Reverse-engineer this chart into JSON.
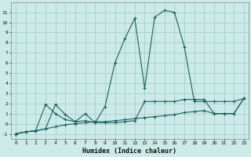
{
  "xlabel": "Humidex (Indice chaleur)",
  "background_color": "#cceae7",
  "grid_color": "#aacfcc",
  "line_color": "#1a6060",
  "x_values": [
    0,
    1,
    2,
    3,
    4,
    5,
    6,
    7,
    8,
    9,
    10,
    11,
    12,
    13,
    14,
    15,
    16,
    17,
    18,
    19,
    20,
    21,
    22,
    23
  ],
  "series1": [
    -1.0,
    -0.8,
    -0.7,
    -0.5,
    1.9,
    0.9,
    0.2,
    1.0,
    0.1,
    1.7,
    6.0,
    8.4,
    10.4,
    3.5,
    10.5,
    11.2,
    11.0,
    7.6,
    2.2,
    2.2,
    2.2,
    2.2,
    2.2,
    2.5
  ],
  "series2": [
    -1.0,
    -0.8,
    -0.7,
    1.9,
    1.0,
    0.4,
    0.2,
    0.3,
    0.1,
    0.1,
    0.1,
    0.2,
    0.3,
    2.2,
    2.2,
    2.2,
    2.2,
    2.4,
    2.4,
    2.4,
    1.0,
    1.0,
    1.0,
    2.5
  ],
  "series3": [
    -1.0,
    -0.8,
    -0.7,
    -0.5,
    -0.3,
    -0.1,
    0.0,
    0.1,
    0.2,
    0.2,
    0.3,
    0.4,
    0.5,
    0.6,
    0.7,
    0.8,
    0.9,
    1.1,
    1.2,
    1.3,
    1.0,
    1.0,
    1.0,
    2.5
  ],
  "ylim": [
    -1.5,
    12.0
  ],
  "xlim": [
    -0.5,
    23.5
  ],
  "yticks": [
    -1,
    0,
    1,
    2,
    3,
    4,
    5,
    6,
    7,
    8,
    9,
    10,
    11
  ]
}
